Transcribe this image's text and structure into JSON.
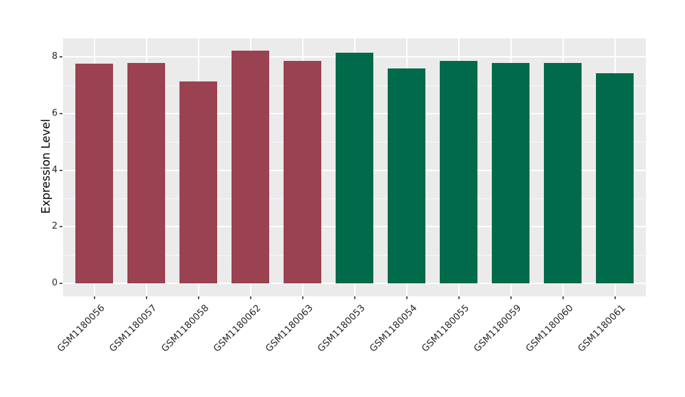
{
  "chart_data": {
    "type": "bar",
    "title": "",
    "xlabel": "",
    "ylabel": "Expression Level",
    "categories": [
      "GSM1180056",
      "GSM1180057",
      "GSM1180058",
      "GSM1180062",
      "GSM1180063",
      "GSM1180053",
      "GSM1180054",
      "GSM1180055",
      "GSM1180059",
      "GSM1180060",
      "GSM1180061"
    ],
    "values": [
      7.76,
      7.78,
      7.13,
      8.22,
      7.86,
      8.16,
      7.59,
      7.87,
      7.78,
      7.78,
      7.42
    ],
    "bar_group_index": [
      0,
      0,
      0,
      0,
      0,
      1,
      1,
      1,
      1,
      1,
      1
    ],
    "groups": [
      {
        "name": "maroon-group",
        "color": "#9A4251"
      },
      {
        "name": "green-group",
        "color": "#006A4A"
      }
    ],
    "ylim": [
      -0.46,
      8.66
    ],
    "yticks_major": [
      0,
      2,
      4,
      6,
      8
    ],
    "yticks_minor": [
      1,
      3,
      5,
      7
    ],
    "grid": "on",
    "legend": "none",
    "panel_background": "#EBEBEB",
    "gridline_color": "#FFFFFF",
    "tick_color": "#555555",
    "tick_label_color": "#262626"
  }
}
